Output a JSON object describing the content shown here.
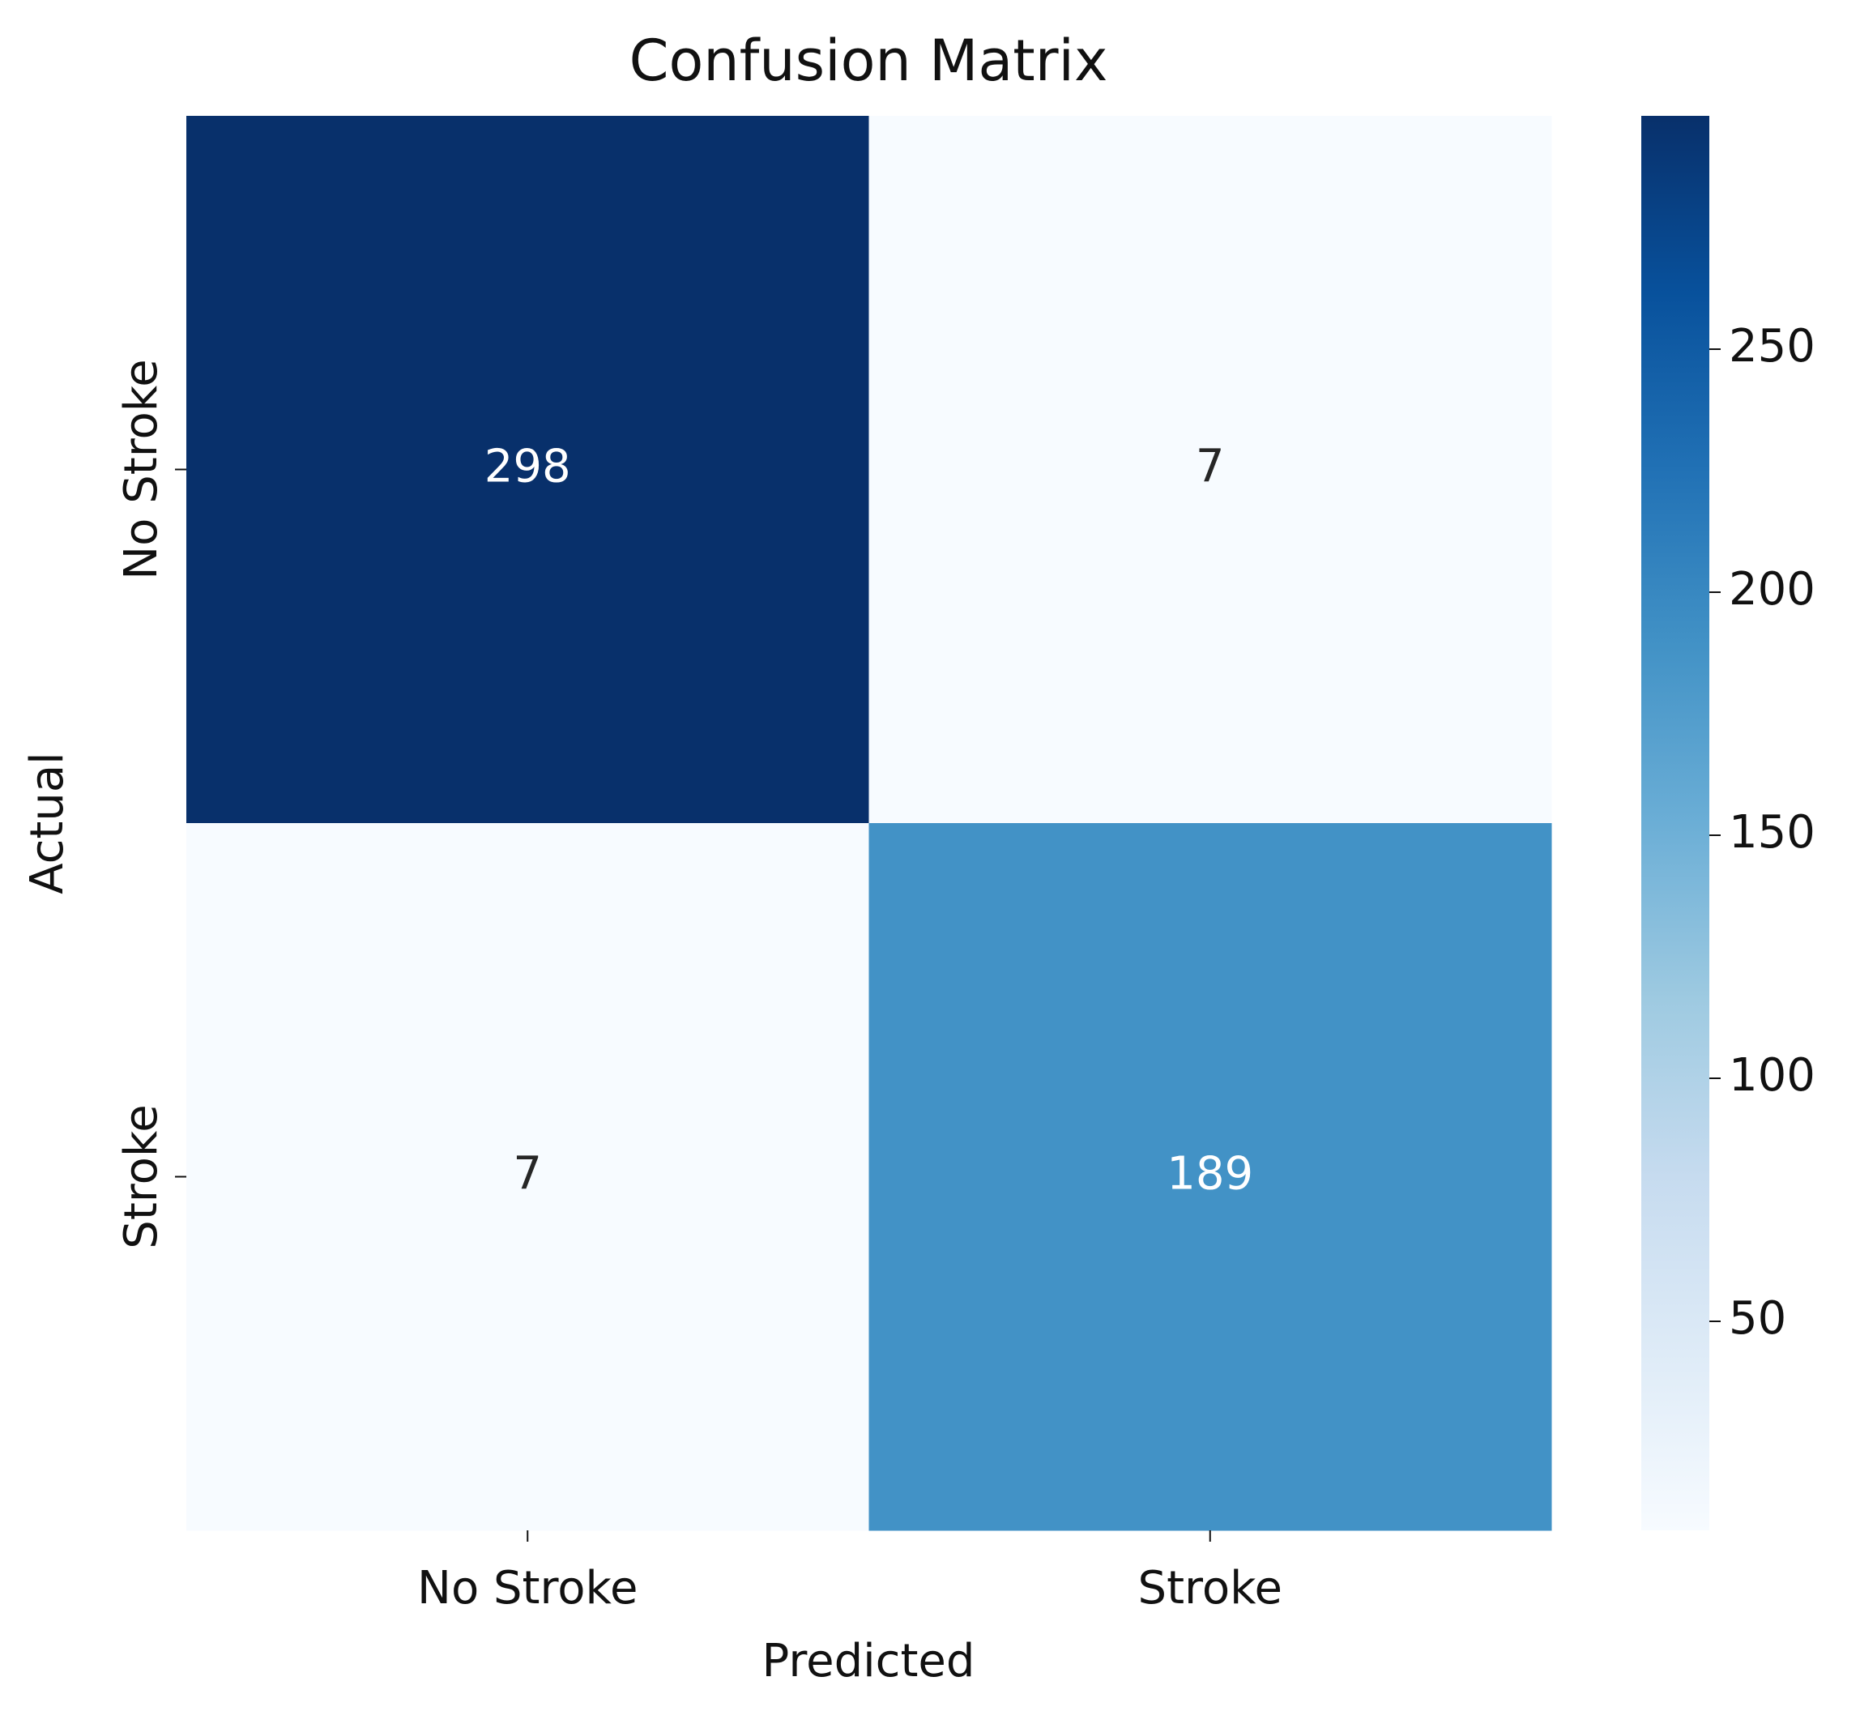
{
  "chart_data": {
    "type": "heatmap",
    "title": "Confusion Matrix",
    "x_label": "Predicted",
    "y_label": "Actual",
    "x_categories": [
      "No Stroke",
      "Stroke"
    ],
    "y_categories": [
      "No Stroke",
      "Stroke"
    ],
    "values": [
      [
        298,
        7
      ],
      [
        7,
        189
      ]
    ],
    "colormap": [
      "#f7fbff",
      "#deebf7",
      "#c6dbef",
      "#9ecae1",
      "#6baed6",
      "#4292c6",
      "#2171b5",
      "#08519c",
      "#08306b"
    ],
    "clim": [
      7,
      298
    ],
    "cticks": [
      50,
      100,
      150,
      200,
      250
    ]
  }
}
